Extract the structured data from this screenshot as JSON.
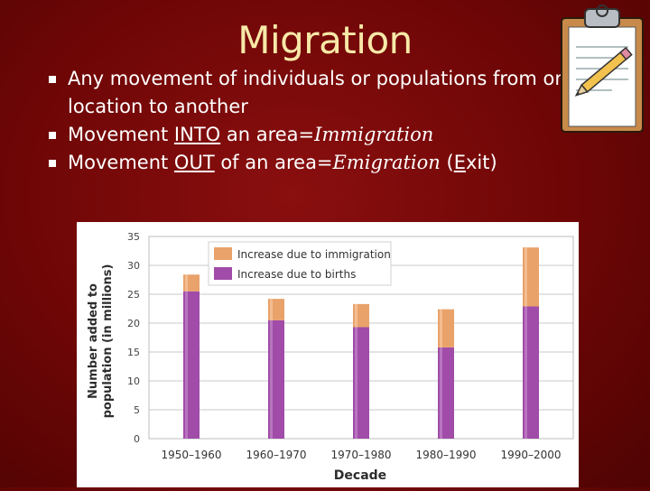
{
  "slide": {
    "title": "Migration",
    "bullets": [
      {
        "parts": [
          "Any movement of individuals or populations from one location to another"
        ]
      },
      {
        "parts": [
          "Movement ",
          "INTO",
          " an area=",
          "Immigration"
        ]
      },
      {
        "parts": [
          "Movement ",
          "OUT",
          " of an area=",
          "Emigration",
          " (",
          "E",
          "xit)"
        ]
      }
    ]
  },
  "icons": {
    "clipboard": "clipboard-pencil-icon"
  },
  "colors": {
    "background": "#6e0606",
    "title": "#f7e9a8",
    "births": "#a04ca8",
    "immigration": "#e9a26a"
  },
  "chart_data": {
    "type": "bar",
    "stacked": true,
    "xlabel": "Decade",
    "ylabel": "Number added to population (in millions)",
    "ylabel_lines": [
      "Number added to",
      "population (in millions)"
    ],
    "ylim": [
      0,
      35
    ],
    "yticks": [
      0,
      5,
      10,
      15,
      20,
      25,
      30,
      35
    ],
    "grid": true,
    "legend_position": "top-center",
    "categories": [
      "1950–1960",
      "1960–1970",
      "1970–1980",
      "1980–1990",
      "1990–2000"
    ],
    "series": [
      {
        "name": "Increase due to births",
        "values": [
          25.5,
          20.5,
          19.3,
          15.8,
          22.9
        ]
      },
      {
        "name": "Increase due to immigration",
        "values": [
          2.9,
          3.7,
          4.0,
          6.6,
          10.2
        ]
      }
    ]
  }
}
